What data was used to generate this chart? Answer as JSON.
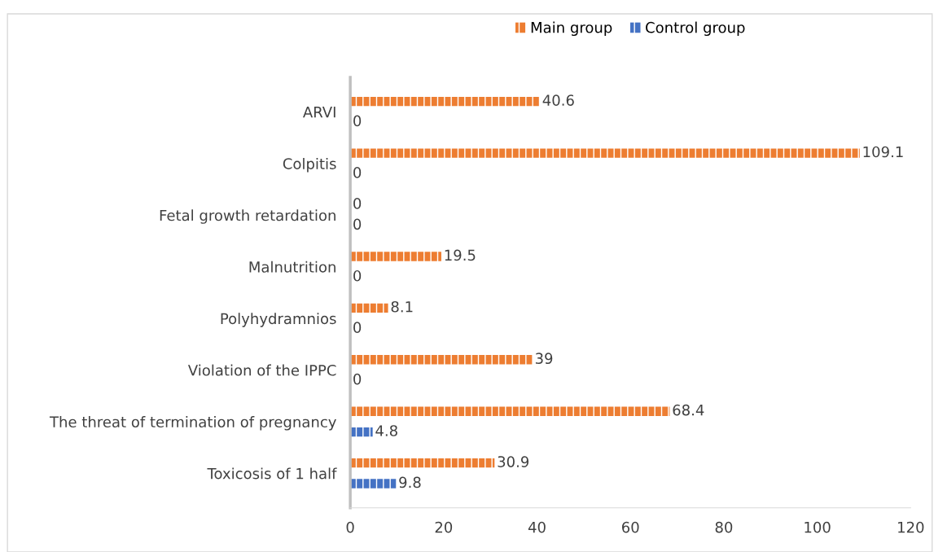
{
  "chart_data": {
    "type": "bar",
    "orientation": "horizontal",
    "categories": [
      "ARVI",
      "Colpitis",
      "Fetal growth retardation",
      "Malnutrition",
      "Polyhydramnios",
      "Violation of the IPPC",
      "The threat of termination of pregnancy",
      "Toxicosis of 1 half"
    ],
    "series": [
      {
        "name": "Main group",
        "color": "#ed7d31",
        "values": [
          40.6,
          109.1,
          0,
          19.5,
          8.1,
          39,
          68.4,
          30.9
        ]
      },
      {
        "name": "Control group",
        "color": "#4472c4",
        "values": [
          0,
          0,
          0,
          0,
          0,
          0,
          4.8,
          9.8
        ]
      }
    ],
    "xlim": [
      0,
      120
    ],
    "xticks": [
      0,
      20,
      40,
      60,
      80,
      100,
      120
    ],
    "data_labels": true,
    "grid": false,
    "legend": "top"
  }
}
